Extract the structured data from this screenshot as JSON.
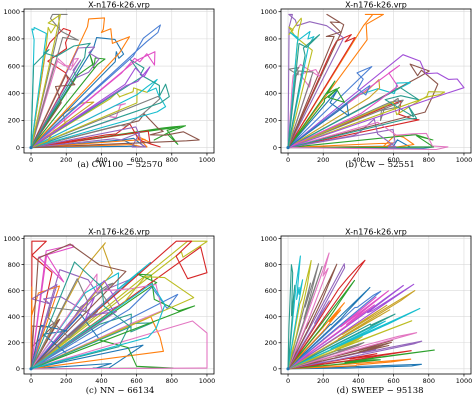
{
  "chart_data": [
    {
      "type": "line",
      "title": "X-n176-k26.vrp",
      "caption": "(a)  CW100 − 52570",
      "xlabel": "",
      "ylabel": "",
      "xlim": [
        -40,
        1040
      ],
      "ylim": [
        -40,
        1020
      ],
      "xticks": [
        0,
        200,
        400,
        600,
        800,
        1000
      ],
      "yticks": [
        0,
        200,
        400,
        600,
        800,
        1000
      ],
      "grid": true,
      "depot": [
        0,
        0
      ],
      "method": "savings",
      "seed": 11
    },
    {
      "type": "line",
      "title": "X-n176-k26.vrp",
      "caption": "(b)  CW − 52551",
      "xlabel": "",
      "ylabel": "",
      "xlim": [
        -40,
        1040
      ],
      "ylim": [
        -40,
        1020
      ],
      "xticks": [
        0,
        200,
        400,
        600,
        800,
        1000
      ],
      "yticks": [
        0,
        200,
        400,
        600,
        800,
        1000
      ],
      "grid": true,
      "depot": [
        0,
        0
      ],
      "method": "savings",
      "seed": 23
    },
    {
      "type": "line",
      "title": "X-n176-k26.vrp",
      "caption": "(c)  NN − 66134",
      "xlabel": "",
      "ylabel": "",
      "xlim": [
        -40,
        1040
      ],
      "ylim": [
        -40,
        1020
      ],
      "xticks": [
        0,
        200,
        400,
        600,
        800,
        1000
      ],
      "yticks": [
        0,
        200,
        400,
        600,
        800,
        1000
      ],
      "grid": true,
      "depot": [
        0,
        0
      ],
      "method": "nn",
      "seed": 37
    },
    {
      "type": "line",
      "title": "X-n176-k26.vrp",
      "caption": "(d)  SWEEP − 95138",
      "xlabel": "",
      "ylabel": "",
      "xlim": [
        -40,
        1040
      ],
      "ylim": [
        -40,
        1020
      ],
      "xticks": [
        0,
        200,
        400,
        600,
        800,
        1000
      ],
      "yticks": [
        0,
        200,
        400,
        600,
        800,
        1000
      ],
      "grid": true,
      "depot": [
        0,
        0
      ],
      "method": "sweep",
      "seed": 53
    }
  ],
  "colors": {
    "route_palette": [
      "#1f77b4",
      "#ff7f0e",
      "#2ca02c",
      "#d62728",
      "#9467bd",
      "#8c564b",
      "#e377c2",
      "#7f7f7f",
      "#bcbd22",
      "#17becf",
      "#2a9d8f",
      "#c9a227",
      "#a14fd8",
      "#e14fc6",
      "#4a7fd4"
    ],
    "grid": "#d9d9d9",
    "axes": "#000000"
  }
}
